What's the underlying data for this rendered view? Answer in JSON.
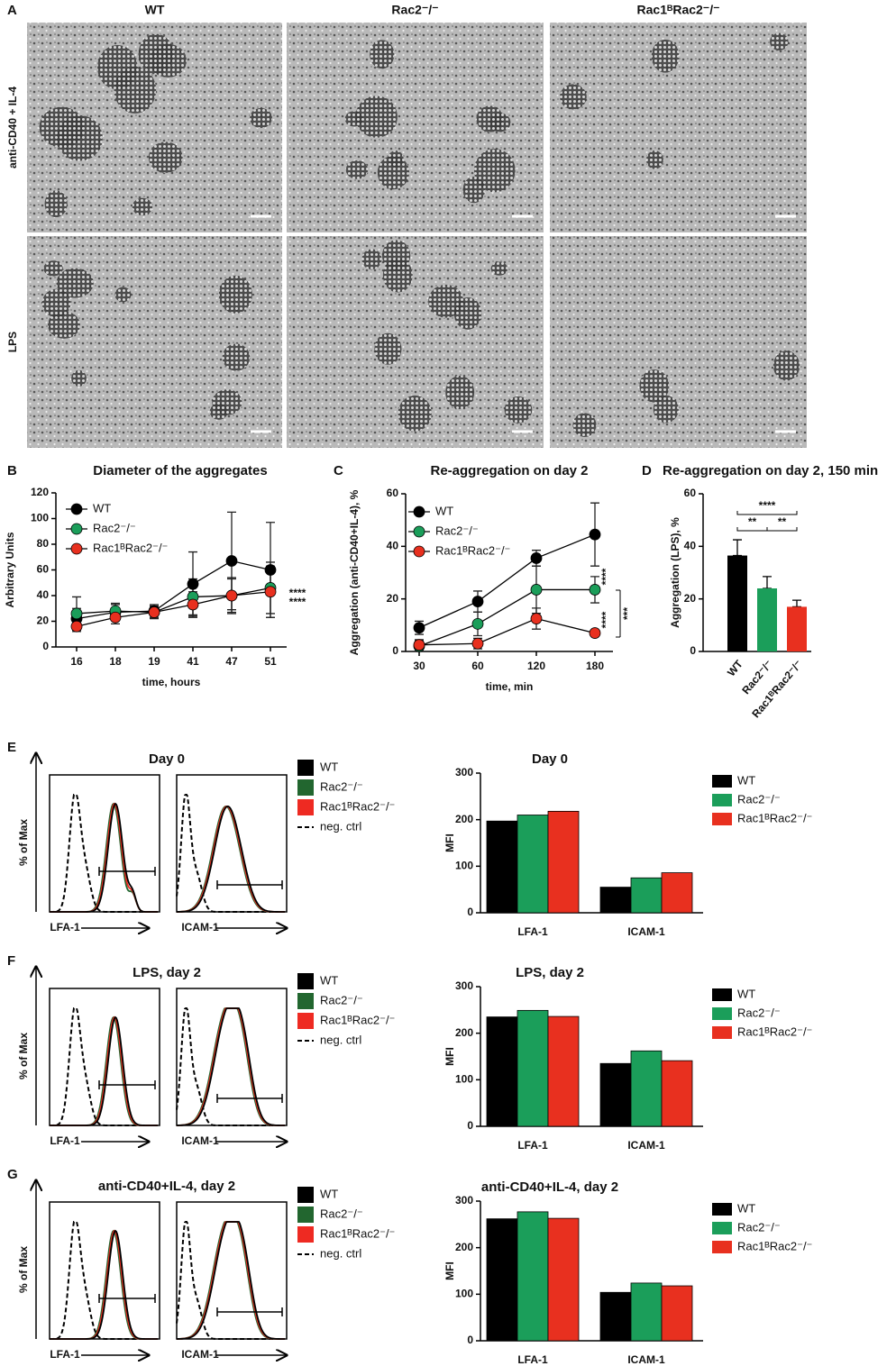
{
  "figure_a": {
    "letter": "A",
    "columns": [
      "WT",
      "Rac2⁻/⁻",
      "Rac1ᴮRac2⁻/⁻"
    ],
    "rows": [
      "anti-CD40 + IL-4",
      "LPS"
    ]
  },
  "flow": [
    {
      "letter": "E",
      "title": "Day 0",
      "y_label": "% of Max",
      "x_labels": [
        "LFA-1",
        "ICAM-1"
      ]
    },
    {
      "letter": "F",
      "title": "LPS, day 2",
      "y_label": "% of Max",
      "x_labels": [
        "LFA-1",
        "ICAM-1"
      ]
    },
    {
      "letter": "G",
      "title": "anti-CD40+IL-4, day 2",
      "y_label": "% of Max",
      "x_labels": [
        "LFA-1",
        "ICAM-1"
      ]
    }
  ],
  "flow_legend": [
    {
      "label": "WT",
      "color": "#000000"
    },
    {
      "label": "Rac2⁻/⁻",
      "color": "#22662f"
    },
    {
      "label": "Rac1ᴮRac2⁻/⁻",
      "color": "#ee2a22"
    },
    {
      "label": "neg. ctrl",
      "color": "#000000"
    }
  ],
  "chart_data": [
    {
      "type": "line",
      "panel": "B",
      "title": "Diameter of the aggregates",
      "y_label": "Arbitrary Units",
      "x_label": "time, hours",
      "categories": [
        "16",
        "18",
        "19",
        "41",
        "47",
        "51"
      ],
      "ylim": [
        0,
        120
      ],
      "yticks": [
        0,
        20,
        40,
        60,
        80,
        100,
        120
      ],
      "series": [
        {
          "name": "WT",
          "color": "#000000",
          "values": [
            22,
            27,
            28,
            49,
            67,
            60
          ],
          "errors": [
            8,
            6,
            5,
            25,
            38,
            37
          ]
        },
        {
          "name": "Rac2⁻/⁻",
          "color": "#1b9e5a",
          "values": [
            26,
            28,
            27,
            39,
            40,
            46
          ],
          "errors": [
            13,
            6,
            4,
            14,
            13,
            20
          ]
        },
        {
          "name": "Rac1ᴮRac2⁻/⁻",
          "color": "#e8301f",
          "values": [
            16,
            23,
            27,
            33,
            40,
            43
          ],
          "errors": [
            4,
            5,
            5,
            10,
            14,
            20
          ]
        }
      ],
      "annotations": [
        "****",
        "****"
      ]
    },
    {
      "type": "line",
      "panel": "C",
      "title": "Re-aggregation on day 2",
      "y_label": "Aggregation (anti-CD40+IL-4), %",
      "x_label": "time, min",
      "categories": [
        "30",
        "60",
        "120",
        "180"
      ],
      "ylim": [
        0,
        60
      ],
      "yticks": [
        0,
        20,
        40,
        60
      ],
      "series": [
        {
          "name": "WT",
          "color": "#000000",
          "values": [
            9,
            19,
            35.5,
            44.5
          ],
          "errors": [
            2.5,
            4,
            3,
            12
          ]
        },
        {
          "name": "Rac2⁻/⁻",
          "color": "#1b9e5a",
          "values": [
            2,
            10.5,
            23.5,
            23.5
          ],
          "errors": [
            2,
            4.5,
            9,
            5
          ]
        },
        {
          "name": "Rac1ᴮRac2⁻/⁻",
          "color": "#e8301f",
          "values": [
            2.5,
            3,
            12.5,
            7
          ],
          "errors": [
            2,
            2,
            4,
            1
          ]
        }
      ],
      "annotations": [
        "****",
        "****",
        "***"
      ]
    },
    {
      "type": "bar",
      "panel": "D",
      "title": "Re-aggregation on day 2, 150 min",
      "y_label": "Aggregation (LPS), %",
      "categories": [
        "WT",
        "Rac2⁻/⁻",
        "Rac1ᴮRac2⁻/⁻"
      ],
      "values": [
        36.5,
        24,
        17
      ],
      "errors": [
        6,
        4.5,
        2.5
      ],
      "colors": [
        "#000000",
        "#1b9e5a",
        "#e8301f"
      ],
      "ylim": [
        0,
        60
      ],
      "yticks": [
        0,
        20,
        40,
        60
      ],
      "annotations": [
        "****",
        "**",
        "**"
      ]
    },
    {
      "type": "grouped-bar",
      "title": "Day 0",
      "y_label": "MFI",
      "categories": [
        "LFA-1",
        "ICAM-1"
      ],
      "ylim": [
        0,
        300
      ],
      "yticks": [
        0,
        100,
        200,
        300
      ],
      "series": [
        {
          "name": "WT",
          "color": "#000000",
          "values": [
            197,
            55
          ]
        },
        {
          "name": "Rac2⁻/⁻",
          "color": "#1b9e5a",
          "values": [
            210,
            75
          ]
        },
        {
          "name": "Rac1ᴮRac2⁻/⁻",
          "color": "#e8301f",
          "values": [
            218,
            86
          ]
        }
      ]
    },
    {
      "type": "grouped-bar",
      "title": "LPS, day 2",
      "y_label": "MFI",
      "categories": [
        "LFA-1",
        "ICAM-1"
      ],
      "ylim": [
        0,
        300
      ],
      "yticks": [
        0,
        100,
        200,
        300
      ],
      "series": [
        {
          "name": "WT",
          "color": "#000000",
          "values": [
            235,
            135
          ]
        },
        {
          "name": "Rac2⁻/⁻",
          "color": "#1b9e5a",
          "values": [
            249,
            162
          ]
        },
        {
          "name": "Rac1ᴮRac2⁻/⁻",
          "color": "#e8301f",
          "values": [
            236,
            141
          ]
        }
      ]
    },
    {
      "type": "grouped-bar",
      "title": "anti-CD40+IL-4, day 2",
      "y_label": "MFI",
      "categories": [
        "LFA-1",
        "ICAM-1"
      ],
      "ylim": [
        0,
        300
      ],
      "yticks": [
        0,
        100,
        200,
        300
      ],
      "series": [
        {
          "name": "WT",
          "color": "#000000",
          "values": [
            262,
            104
          ]
        },
        {
          "name": "Rac2⁻/⁻",
          "color": "#1b9e5a",
          "values": [
            277,
            124
          ]
        },
        {
          "name": "Rac1ᴮRac2⁻/⁻",
          "color": "#e8301f",
          "values": [
            263,
            118
          ]
        }
      ]
    }
  ]
}
